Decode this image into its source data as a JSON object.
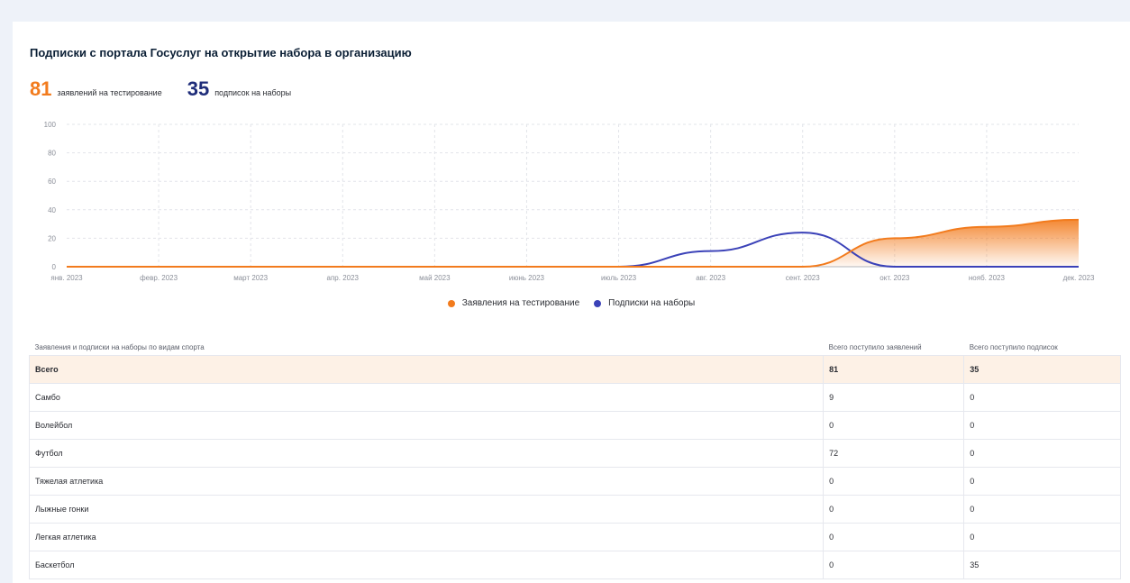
{
  "title": "Подписки с портала Госуслуг на открытие набора в организацию",
  "stats": [
    {
      "value": "81",
      "label": "заявлений на тестирование",
      "color": "#f27b1d"
    },
    {
      "value": "35",
      "label": "подписок на наборы",
      "color": "#1f2d7a"
    }
  ],
  "colors": {
    "orange": "#f27b1d",
    "blue": "#3b42b8"
  },
  "chart_data": {
    "type": "line",
    "x": [
      "янв. 2023",
      "февр. 2023",
      "март 2023",
      "апр. 2023",
      "май 2023",
      "июнь 2023",
      "июль 2023",
      "авг. 2023",
      "сент. 2023",
      "окт. 2023",
      "нояб. 2023",
      "дек. 2023"
    ],
    "ylim": [
      0,
      100
    ],
    "yticks": [
      0,
      20,
      40,
      60,
      80,
      100
    ],
    "grid": true,
    "legend_position": "bottom-center",
    "series": [
      {
        "name": "Заявления на тестирование",
        "color": "#f27b1d",
        "fill": true,
        "values": [
          0,
          0,
          0,
          0,
          0,
          0,
          0,
          0,
          0,
          20,
          28,
          33
        ]
      },
      {
        "name": "Подписки на наборы",
        "color": "#3b42b8",
        "fill": false,
        "values": [
          0,
          0,
          0,
          0,
          0,
          0,
          0,
          11,
          24,
          0,
          0,
          0
        ]
      }
    ]
  },
  "table": {
    "headers": [
      "Заявления и подписки на наборы по видам спорта",
      "Всего поступило заявлений",
      "Всего поступило подписок"
    ],
    "total": {
      "name": "Всего",
      "apps": "81",
      "subs": "35"
    },
    "rows": [
      {
        "name": "Самбо",
        "apps": "9",
        "subs": "0"
      },
      {
        "name": "Волейбол",
        "apps": "0",
        "subs": "0"
      },
      {
        "name": "Футбол",
        "apps": "72",
        "subs": "0"
      },
      {
        "name": "Тяжелая атлетика",
        "apps": "0",
        "subs": "0"
      },
      {
        "name": "Лыжные гонки",
        "apps": "0",
        "subs": "0"
      },
      {
        "name": "Легкая атлетика",
        "apps": "0",
        "subs": "0"
      },
      {
        "name": "Баскетбол",
        "apps": "0",
        "subs": "35"
      }
    ]
  }
}
